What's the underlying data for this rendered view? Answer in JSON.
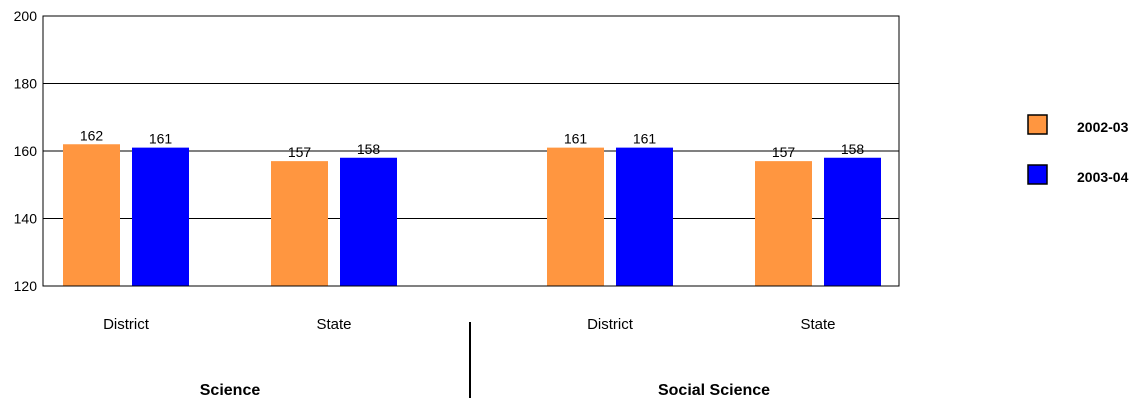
{
  "chart_data": {
    "type": "bar",
    "ylim": [
      120,
      200
    ],
    "yticks": [
      120,
      140,
      160,
      180,
      200
    ],
    "grid": true,
    "legend_position": "right",
    "groups": [
      "Science",
      "Social Science"
    ],
    "categories": [
      "District",
      "State",
      "District",
      "State"
    ],
    "series": [
      {
        "name": "2002-03",
        "color": "#FF9640",
        "values": [
          162,
          157,
          161,
          157
        ]
      },
      {
        "name": "2003-04",
        "color": "#0000FF",
        "values": [
          161,
          158,
          161,
          158
        ]
      }
    ]
  }
}
